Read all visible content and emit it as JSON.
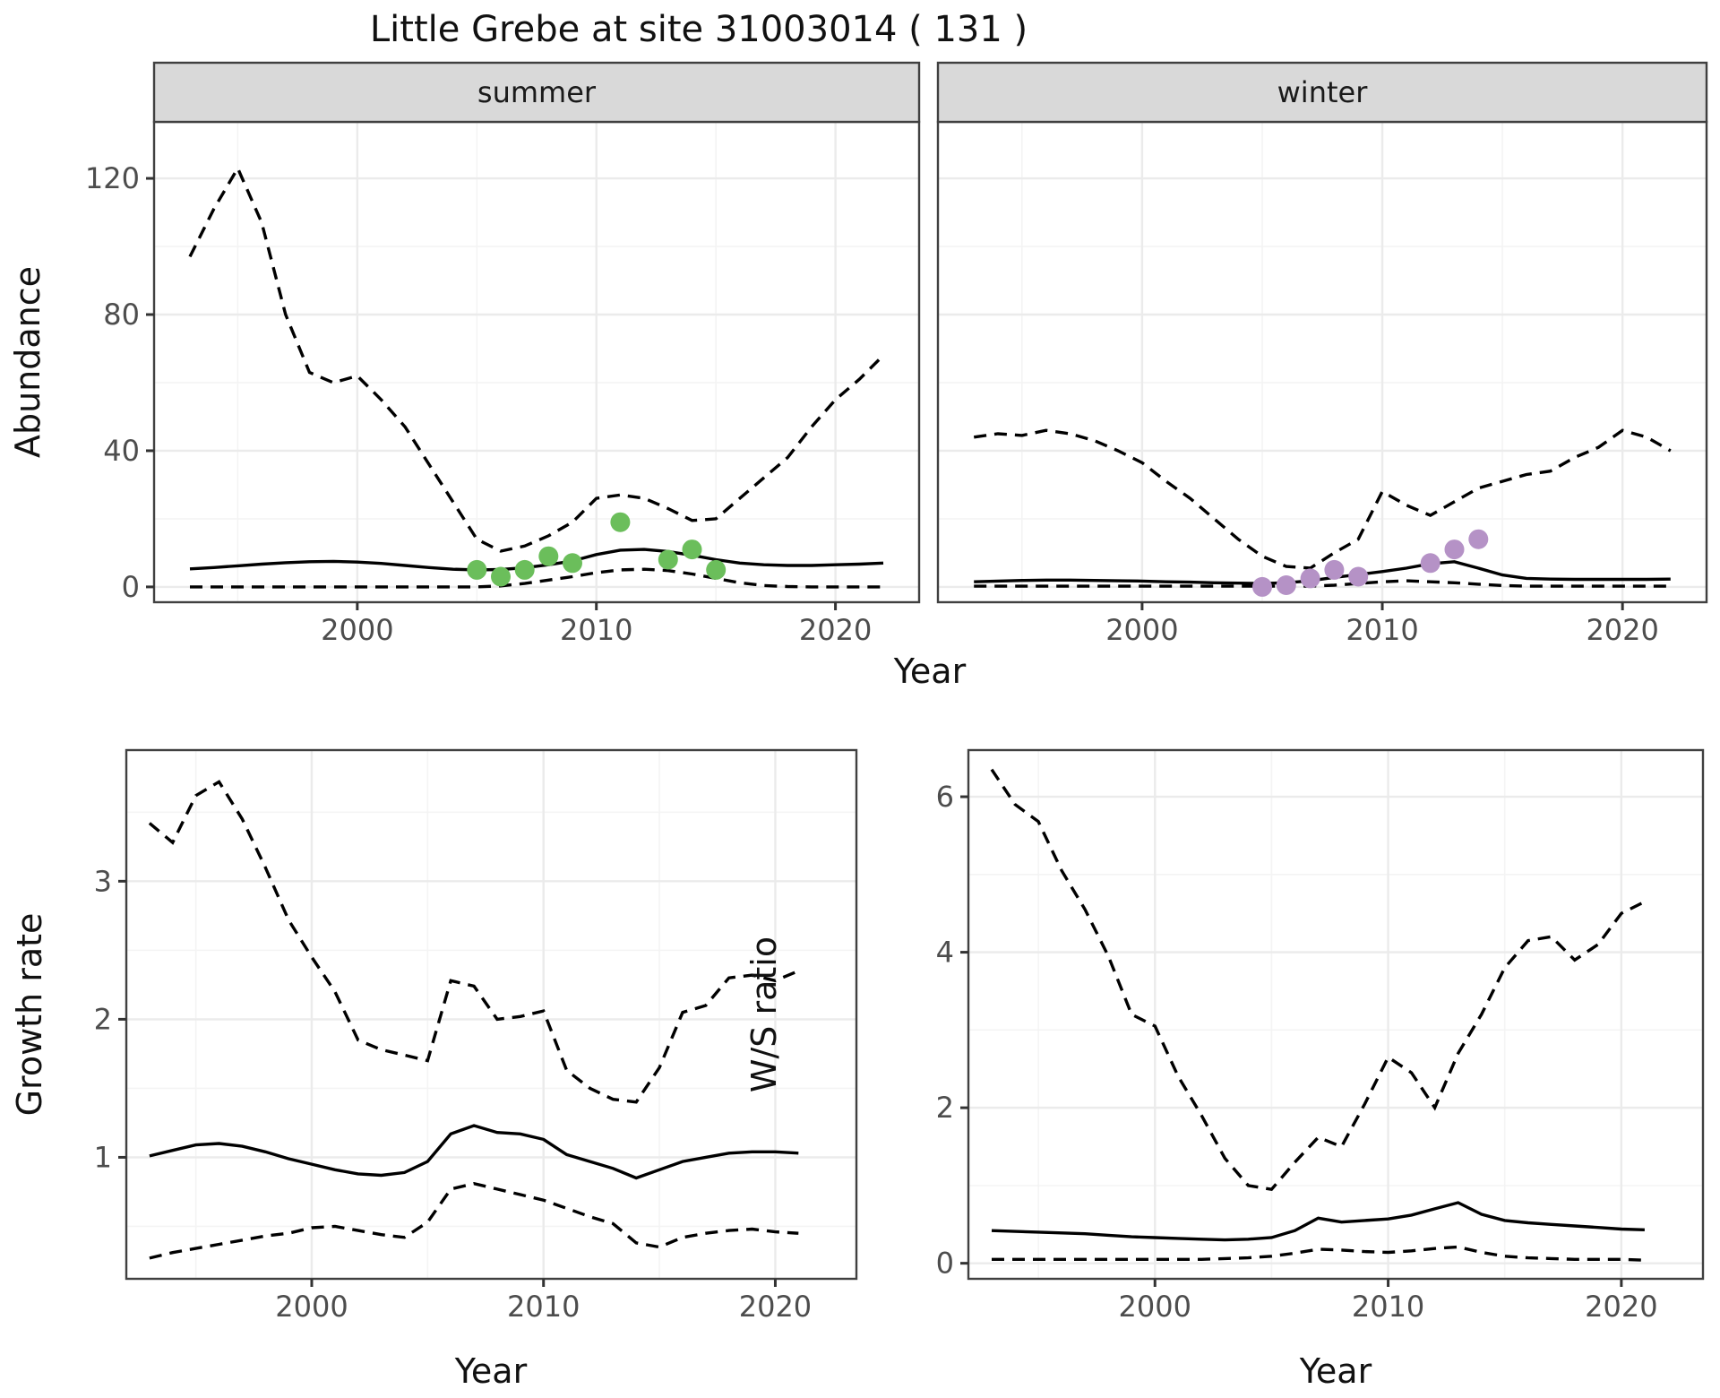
{
  "title": "Little Grebe at site 31003014 ( 131 )",
  "colors": {
    "summer_points": "#6BBE5B",
    "winter_points": "#B592C6",
    "line": "#000000",
    "strip_bg": "#D9D9D9",
    "strip_text": "#1A1A1A",
    "panel_border": "#404040",
    "panel_bg": "#FFFFFF",
    "grid_major": "#EBEBEB",
    "grid_minor": "#F4F4F4",
    "axis_text": "#4D4D4D",
    "axis_title": "#111111",
    "tick_mark": "#333333"
  },
  "chart_data": [
    {
      "id": "summer",
      "type": "line",
      "facet_label": "summer",
      "ylabel": "Abundance",
      "xlabel": "Year",
      "x": [
        1993,
        1994,
        1995,
        1996,
        1997,
        1998,
        1999,
        2000,
        2001,
        2002,
        2003,
        2004,
        2005,
        2006,
        2007,
        2008,
        2009,
        2010,
        2011,
        2012,
        2013,
        2014,
        2015,
        2016,
        2017,
        2018,
        2019,
        2020,
        2021,
        2022
      ],
      "series": [
        {
          "name": "upper-ci",
          "style": "dashed",
          "values": [
            97,
            111,
            123,
            107,
            80,
            63,
            60,
            62,
            55,
            47,
            36,
            25,
            14,
            10.5,
            12,
            15,
            19,
            26,
            27,
            26,
            23,
            19.5,
            20,
            26,
            32,
            38,
            47,
            55,
            61,
            68
          ]
        },
        {
          "name": "lower-ci",
          "style": "dashed",
          "values": [
            0,
            0,
            0,
            0,
            0,
            0,
            0,
            0,
            0,
            0,
            0,
            0,
            0,
            0.3,
            1,
            2,
            3,
            4.2,
            5,
            5.2,
            4.8,
            3.8,
            2.5,
            1.2,
            0.4,
            0.1,
            0,
            0,
            0,
            0
          ]
        },
        {
          "name": "mean",
          "style": "solid",
          "values": [
            5.3,
            5.7,
            6.2,
            6.7,
            7.1,
            7.4,
            7.5,
            7.3,
            6.9,
            6.3,
            5.7,
            5.2,
            5.0,
            5.1,
            5.6,
            6.5,
            7.6,
            9.5,
            10.8,
            11.0,
            10.4,
            9.3,
            8.0,
            7.0,
            6.5,
            6.3,
            6.3,
            6.5,
            6.7,
            7.0
          ]
        }
      ],
      "points": {
        "name": "summer-observations",
        "color_key": "summer_points",
        "x": [
          2005,
          2006,
          2007,
          2008,
          2009,
          2011,
          2013,
          2014,
          2015
        ],
        "y": [
          5,
          3,
          5,
          9,
          7,
          19,
          8,
          11,
          5
        ]
      },
      "xlim": [
        1991.5,
        2023.5
      ],
      "ylim": [
        -4.5,
        136.6
      ],
      "xticks": [
        2000,
        2010,
        2020
      ],
      "yticks": [
        0,
        40,
        80,
        120
      ],
      "xminor": [
        1995,
        2005,
        2015
      ],
      "yminor": [
        20,
        60,
        100
      ],
      "grid": true,
      "legend": "none"
    },
    {
      "id": "winter",
      "type": "line",
      "facet_label": "winter",
      "ylabel": "Abundance",
      "xlabel": "Year",
      "x": [
        1993,
        1994,
        1995,
        1996,
        1997,
        1998,
        1999,
        2000,
        2001,
        2002,
        2003,
        2004,
        2005,
        2006,
        2007,
        2008,
        2009,
        2010,
        2011,
        2012,
        2013,
        2014,
        2015,
        2016,
        2017,
        2018,
        2019,
        2020,
        2021,
        2022
      ],
      "series": [
        {
          "name": "upper-ci",
          "style": "dashed",
          "values": [
            44,
            45,
            44.5,
            46,
            45,
            43,
            40,
            36.5,
            31,
            26,
            20,
            14,
            9,
            6,
            5.5,
            10,
            14,
            28,
            24,
            21,
            25,
            29,
            31,
            33,
            34,
            38,
            41,
            46,
            44,
            40
          ]
        },
        {
          "name": "lower-ci",
          "style": "dashed",
          "values": [
            0.2,
            0.2,
            0.2,
            0.2,
            0.2,
            0.2,
            0.2,
            0.2,
            0.2,
            0.2,
            0.2,
            0.2,
            0.2,
            0.2,
            0.2,
            0.5,
            1.0,
            1.5,
            1.8,
            1.5,
            1.2,
            0.8,
            0.4,
            0.2,
            0.2,
            0.2,
            0.2,
            0.2,
            0.2,
            0.2
          ]
        },
        {
          "name": "mean",
          "style": "solid",
          "values": [
            1.5,
            1.7,
            1.9,
            2.0,
            2.0,
            1.9,
            1.8,
            1.7,
            1.5,
            1.4,
            1.2,
            1.1,
            1.0,
            1.2,
            1.8,
            2.8,
            3.6,
            4.5,
            5.5,
            6.8,
            7.4,
            5.5,
            3.5,
            2.5,
            2.3,
            2.2,
            2.2,
            2.2,
            2.2,
            2.3
          ]
        }
      ],
      "points": {
        "name": "winter-observations",
        "color_key": "winter_points",
        "x": [
          2005,
          2006,
          2007,
          2008,
          2009,
          2012,
          2013,
          2014
        ],
        "y": [
          0,
          0.5,
          2.5,
          5,
          3,
          7,
          11,
          14
        ]
      },
      "xlim": [
        1991.5,
        2023.5
      ],
      "ylim": [
        -4.5,
        136.6
      ],
      "xticks": [
        2000,
        2010,
        2020
      ],
      "yticks": [
        0,
        40,
        80,
        120
      ],
      "xminor": [
        1995,
        2005,
        2015
      ],
      "yminor": [
        20,
        60,
        100
      ],
      "grid": true,
      "legend": "none"
    },
    {
      "id": "growth",
      "type": "line",
      "facet_label": "",
      "ylabel": "Growth rate",
      "xlabel": "Year",
      "x": [
        1993,
        1994,
        1995,
        1996,
        1997,
        1998,
        1999,
        2000,
        2001,
        2002,
        2003,
        2004,
        2005,
        2006,
        2007,
        2008,
        2009,
        2010,
        2011,
        2012,
        2013,
        2014,
        2015,
        2016,
        2017,
        2018,
        2019,
        2020,
        2021
      ],
      "series": [
        {
          "name": "upper-ci",
          "style": "dashed",
          "values": [
            3.42,
            3.28,
            3.62,
            3.72,
            3.45,
            3.1,
            2.72,
            2.45,
            2.2,
            1.85,
            1.78,
            1.74,
            1.7,
            2.28,
            2.24,
            2.0,
            2.02,
            2.06,
            1.63,
            1.5,
            1.42,
            1.4,
            1.65,
            2.05,
            2.1,
            2.3,
            2.32,
            2.28,
            2.35
          ]
        },
        {
          "name": "lower-ci",
          "style": "dashed",
          "values": [
            0.27,
            0.31,
            0.34,
            0.37,
            0.4,
            0.43,
            0.45,
            0.49,
            0.5,
            0.47,
            0.44,
            0.42,
            0.53,
            0.77,
            0.81,
            0.77,
            0.73,
            0.69,
            0.63,
            0.57,
            0.52,
            0.38,
            0.35,
            0.42,
            0.45,
            0.47,
            0.48,
            0.46,
            0.45
          ]
        },
        {
          "name": "mean",
          "style": "solid",
          "values": [
            1.01,
            1.05,
            1.09,
            1.1,
            1.08,
            1.04,
            0.99,
            0.95,
            0.91,
            0.88,
            0.87,
            0.89,
            0.97,
            1.17,
            1.23,
            1.18,
            1.17,
            1.13,
            1.02,
            0.97,
            0.92,
            0.85,
            0.91,
            0.97,
            1.0,
            1.03,
            1.04,
            1.04,
            1.03
          ]
        }
      ],
      "points": null,
      "xlim": [
        1992,
        2023.5
      ],
      "ylim": [
        0.12,
        3.95
      ],
      "xticks": [
        2000,
        2010,
        2020
      ],
      "yticks": [
        1,
        2,
        3
      ],
      "xminor": [
        1995,
        2005,
        2015
      ],
      "yminor": [
        0.5,
        1.5,
        2.5,
        3.5
      ],
      "grid": true,
      "legend": "none"
    },
    {
      "id": "ws",
      "type": "line",
      "facet_label": "",
      "ylabel": "W/S ratio",
      "xlabel": "Year",
      "x": [
        1993,
        1994,
        1995,
        1996,
        1997,
        1998,
        1999,
        2000,
        2001,
        2002,
        2003,
        2004,
        2005,
        2006,
        2007,
        2008,
        2009,
        2010,
        2011,
        2012,
        2013,
        2014,
        2015,
        2016,
        2017,
        2018,
        2019,
        2020,
        2021
      ],
      "series": [
        {
          "name": "upper-ci",
          "style": "dashed",
          "values": [
            6.35,
            5.9,
            5.68,
            5.05,
            4.55,
            3.95,
            3.2,
            3.05,
            2.4,
            1.9,
            1.35,
            1.0,
            0.95,
            1.3,
            1.62,
            1.5,
            2.05,
            2.65,
            2.45,
            2.0,
            2.7,
            3.2,
            3.8,
            4.15,
            4.2,
            3.9,
            4.1,
            4.5,
            4.65
          ]
        },
        {
          "name": "lower-ci",
          "style": "dashed",
          "values": [
            0.05,
            0.05,
            0.05,
            0.05,
            0.05,
            0.05,
            0.05,
            0.05,
            0.05,
            0.05,
            0.06,
            0.07,
            0.09,
            0.13,
            0.18,
            0.17,
            0.15,
            0.14,
            0.16,
            0.19,
            0.21,
            0.14,
            0.09,
            0.07,
            0.06,
            0.05,
            0.05,
            0.05,
            0.04
          ]
        },
        {
          "name": "mean",
          "style": "solid",
          "values": [
            0.42,
            0.41,
            0.4,
            0.39,
            0.38,
            0.36,
            0.34,
            0.33,
            0.32,
            0.31,
            0.3,
            0.31,
            0.33,
            0.42,
            0.58,
            0.53,
            0.55,
            0.57,
            0.62,
            0.7,
            0.78,
            0.63,
            0.55,
            0.52,
            0.5,
            0.48,
            0.46,
            0.44,
            0.43
          ]
        }
      ],
      "points": null,
      "xlim": [
        1992,
        2023.5
      ],
      "ylim": [
        -0.2,
        6.6
      ],
      "xticks": [
        2000,
        2010,
        2020
      ],
      "yticks": [
        0,
        2,
        4,
        6
      ],
      "xminor": [
        1995,
        2005,
        2015
      ],
      "yminor": [
        1,
        3,
        5
      ],
      "grid": true,
      "legend": "none"
    }
  ]
}
